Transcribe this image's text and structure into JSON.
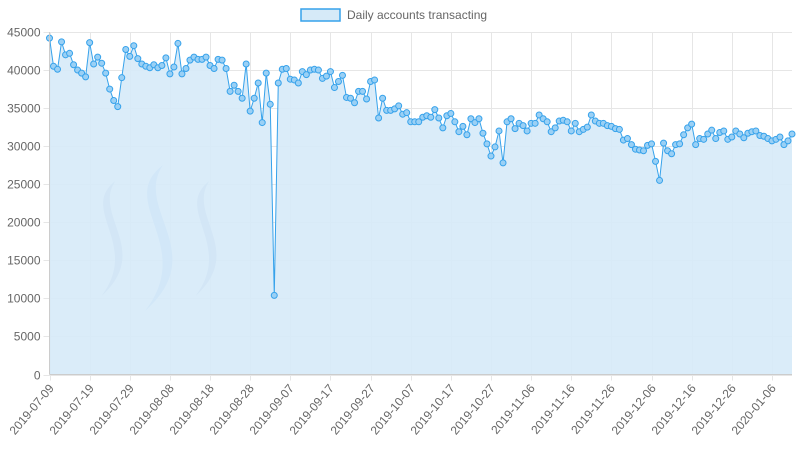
{
  "chart_data": {
    "type": "area",
    "legend": {
      "label": "Daily accounts transacting",
      "position": "top-center"
    },
    "colors": {
      "line": "#36a2eb",
      "fill": "#d6eaf8",
      "point_fill": "#9ad0f5",
      "grid": "#e6e6e6",
      "logo": "#a7b7d8",
      "logo_accent": "#9dc3f2"
    },
    "grid": true,
    "start_date": "2019-07-09",
    "ylim": [
      0,
      45000
    ],
    "y_ticks": [
      0,
      5000,
      10000,
      15000,
      20000,
      25000,
      30000,
      35000,
      40000,
      45000
    ],
    "x_tick_labels": [
      "2019-07-09",
      "2019-07-19",
      "2019-07-29",
      "2019-08-08",
      "2019-08-18",
      "2019-08-28",
      "2019-09-07",
      "2019-09-17",
      "2019-09-27",
      "2019-10-07",
      "2019-10-17",
      "2019-10-27",
      "2019-11-06",
      "2019-11-16",
      "2019-11-26",
      "2019-12-06",
      "2019-12-16",
      "2019-12-26",
      "2020-01-06"
    ],
    "series": [
      {
        "name": "Daily accounts transacting",
        "values": [
          44200,
          40500,
          40100,
          43700,
          42000,
          42200,
          40700,
          40000,
          39600,
          39100,
          43600,
          40800,
          41700,
          40900,
          39600,
          37500,
          36000,
          35200,
          39000,
          42700,
          41800,
          43200,
          41500,
          40800,
          40500,
          40300,
          40700,
          40300,
          40600,
          41600,
          39500,
          40400,
          43500,
          39500,
          40200,
          41300,
          41700,
          41400,
          41400,
          41700,
          40600,
          40200,
          41400,
          41300,
          40200,
          37200,
          38000,
          37200,
          36300,
          40800,
          34600,
          36300,
          38300,
          33100,
          39600,
          35500,
          10400,
          38300,
          40100,
          40200,
          38800,
          38700,
          38300,
          39800,
          39400,
          40000,
          40100,
          40000,
          38900,
          39200,
          39800,
          37700,
          38500,
          39300,
          36400,
          36300,
          35700,
          37200,
          37200,
          36200,
          38500,
          38700,
          33700,
          36300,
          34700,
          34700,
          34900,
          35300,
          34200,
          34400,
          33200,
          33200,
          33200,
          33800,
          34000,
          33800,
          34800,
          33700,
          32400,
          34000,
          34300,
          33200,
          31900,
          32600,
          31500,
          33600,
          33100,
          33600,
          31700,
          30300,
          28700,
          29900,
          32000,
          27800,
          33200,
          33600,
          32300,
          33000,
          32700,
          32000,
          33000,
          33000,
          34100,
          33600,
          33200,
          31900,
          32400,
          33300,
          33400,
          33200,
          32000,
          33000,
          31900,
          32200,
          32500,
          34100,
          33300,
          33000,
          33000,
          32700,
          32600,
          32300,
          32200,
          30800,
          31000,
          30200,
          29600,
          29500,
          29400,
          30100,
          30300,
          28000,
          25500,
          30400,
          29400,
          29000,
          30200,
          30300,
          31500,
          32400,
          32900,
          30200,
          31000,
          30900,
          31600,
          32100,
          31000,
          31800,
          32000,
          30900,
          31200,
          32000,
          31600,
          31100,
          31700,
          31900,
          32000,
          31400,
          31300,
          31000,
          30700,
          30900,
          31200,
          30200,
          30700,
          31600
        ]
      }
    ]
  }
}
